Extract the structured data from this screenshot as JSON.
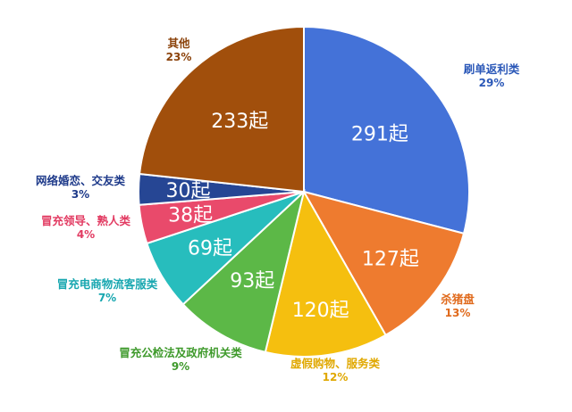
{
  "chart_data": {
    "type": "pie",
    "unit": "起",
    "slices": [
      {
        "name": "刷单返利类",
        "count": 291,
        "count_label": "291起",
        "percent": 29,
        "percent_label": "29%",
        "color": "#4472d8",
        "label_color": "#2b58b8"
      },
      {
        "name": "杀猪盘",
        "count": 127,
        "count_label": "127起",
        "percent": 13,
        "percent_label": "13%",
        "color": "#ee7b2f",
        "label_color": "#e06a1c"
      },
      {
        "name": "虚假购物、服务类",
        "count": 120,
        "count_label": "120起",
        "percent": 12,
        "percent_label": "12%",
        "color": "#f5bf0f",
        "label_color": "#e0a800"
      },
      {
        "name": "冒充公检法及政府机关类",
        "count": 93,
        "count_label": "93起",
        "percent": 9,
        "percent_label": "9%",
        "color": "#5cb847",
        "label_color": "#3f9a2c"
      },
      {
        "name": "冒充电商物流客服类",
        "count": 69,
        "count_label": "69起",
        "percent": 7,
        "percent_label": "7%",
        "color": "#27bdbd",
        "label_color": "#18a7b0"
      },
      {
        "name": "冒充领导、熟人类",
        "count": 38,
        "count_label": "38起",
        "percent": 4,
        "percent_label": "4%",
        "color": "#e94a6b",
        "label_color": "#e23b62"
      },
      {
        "name": "网络婚恋、交友类",
        "count": 30,
        "count_label": "30起",
        "percent": 3,
        "percent_label": "3%",
        "color": "#264694",
        "label_color": "#1e3a8a"
      },
      {
        "name": "其他",
        "count": 233,
        "count_label": "233起",
        "percent": 23,
        "percent_label": "23%",
        "color": "#a14f0c",
        "label_color": "#8b420a"
      }
    ],
    "legend": "none"
  }
}
